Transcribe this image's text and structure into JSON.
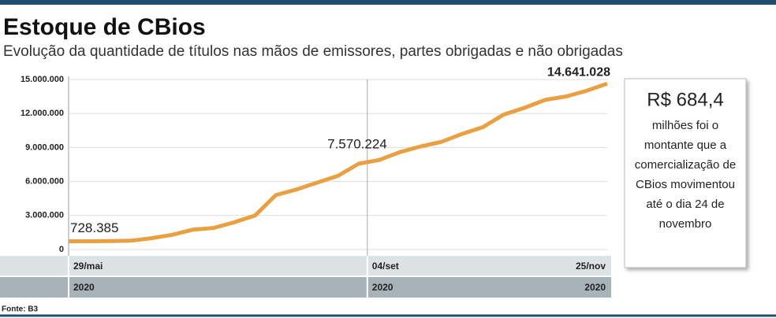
{
  "chart_data": {
    "type": "line",
    "title": "Estoque de CBios",
    "subtitle": "Evolução da quantidade de títulos nas mãos de emissores, partes obrigadas e não obrigadas",
    "categories": [
      "29/mai",
      null,
      null,
      null,
      null,
      null,
      null,
      null,
      null,
      null,
      null,
      null,
      null,
      null,
      "04/set",
      null,
      null,
      null,
      null,
      null,
      null,
      null,
      null,
      null,
      null,
      null,
      "25/nov"
    ],
    "x_year_labels": [
      "2020",
      "2020",
      "2020"
    ],
    "series": [
      {
        "color": "#e8a043",
        "values": [
          728385,
          730000,
          740000,
          780000,
          1000000,
          1300000,
          1750000,
          1900000,
          2400000,
          3000000,
          4800000,
          5300000,
          5900000,
          6500000,
          7570224,
          7900000,
          8600000,
          9100000,
          9500000,
          10200000,
          10800000,
          11900000,
          12500000,
          13200000,
          13500000,
          14000000,
          14641028
        ],
        "value_labels": [
          "728.385",
          null,
          null,
          null,
          null,
          null,
          null,
          null,
          null,
          null,
          null,
          null,
          null,
          null,
          "7.570.224",
          null,
          null,
          null,
          null,
          null,
          null,
          null,
          null,
          null,
          null,
          null,
          "14.641.028"
        ]
      }
    ],
    "ylim": [
      0,
      15000000
    ],
    "yticks": [
      0,
      {
        "value": 3000000,
        "label": "3.000.000"
      },
      {
        "value": 6000000,
        "label": "6.000.000"
      },
      {
        "value": 9000000,
        "label": "9.000.000"
      },
      {
        "value": 12000000,
        "label": "12.000.000"
      },
      {
        "value": 15000000,
        "label": "15.000.000"
      }
    ],
    "grid": true,
    "source": "Fonte: B3",
    "callout": {
      "headline": "R$ 684,4",
      "lines": [
        "milhões foi o",
        "montante que a",
        "comercialização de",
        "CBios movimentou",
        "até o dia 24 de",
        "novembro"
      ]
    }
  }
}
